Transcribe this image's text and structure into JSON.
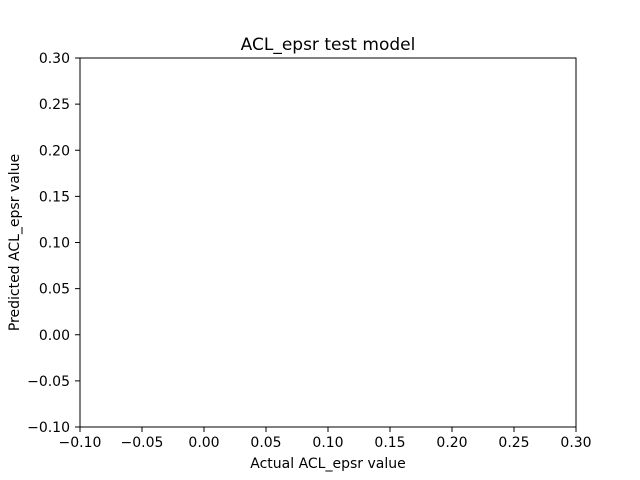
{
  "chart_data": {
    "type": "scatter",
    "title": "ACL_epsr test model",
    "xlabel": "Actual ACL_epsr value",
    "ylabel": "Predicted ACL_epsr value",
    "xlim": [
      -0.1,
      0.3
    ],
    "ylim": [
      -0.1,
      0.3
    ],
    "xticks": [
      "−0.10",
      "−0.05",
      "0.00",
      "0.05",
      "0.10",
      "0.15",
      "0.20",
      "0.25",
      "0.30"
    ],
    "yticks": [
      "−0.10",
      "−0.05",
      "0.00",
      "0.05",
      "0.10",
      "0.15",
      "0.20",
      "0.25",
      "0.30"
    ],
    "points": [],
    "grid": false,
    "legend": "none"
  }
}
